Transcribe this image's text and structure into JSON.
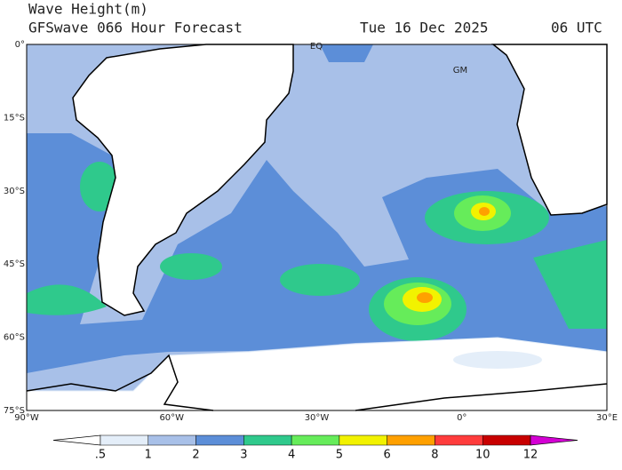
{
  "header": {
    "title": "Wave Height(m)",
    "subtitle": "GFSwave 066 Hour Forecast",
    "date": "Tue 16 Dec 2025",
    "time": "06 UTC"
  },
  "map": {
    "lon_labels": [
      "90°W",
      "60°W",
      "30°W",
      "0°",
      "30°E"
    ],
    "lat_labels": [
      "0°",
      "15°S",
      "30°S",
      "45°S",
      "60°S",
      "75°S"
    ],
    "annotations": [
      "EQ",
      "GM"
    ]
  },
  "colorbar": {
    "labels": [
      ".5",
      "1",
      "2",
      "3",
      "4",
      "5",
      "6",
      "8",
      "10",
      "12"
    ],
    "colors": [
      "#ffffff",
      "#e4eef9",
      "#a8c0e8",
      "#5c8ed8",
      "#2fc98c",
      "#66ec5a",
      "#f2f200",
      "#ffa000",
      "#ff3c3c",
      "#c80000",
      "#d400d4"
    ]
  }
}
